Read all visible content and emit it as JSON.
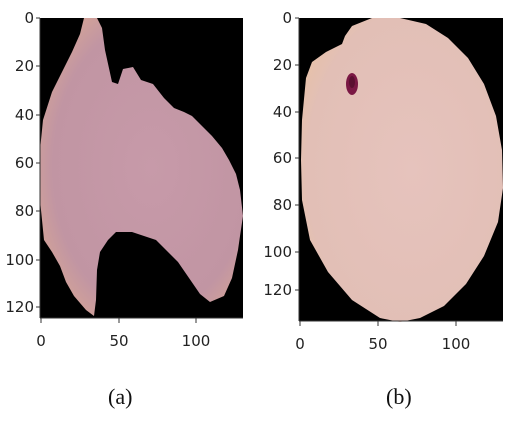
{
  "panels": [
    {
      "id": "a",
      "caption": "(a)",
      "y_ticks": [
        "0",
        "20",
        "40",
        "60",
        "80",
        "100",
        "120"
      ],
      "x_ticks": [
        "0",
        "50",
        "100"
      ],
      "cell_color": "#c49aa4",
      "background_color": "#000000"
    },
    {
      "id": "b",
      "caption": "(b)",
      "y_ticks": [
        "0",
        "20",
        "40",
        "60",
        "80",
        "100",
        "120"
      ],
      "x_ticks": [
        "0",
        "50",
        "100"
      ],
      "cell_color": "#e3c2b6",
      "background_color": "#000000",
      "parasite_color": "#7a1844"
    }
  ]
}
